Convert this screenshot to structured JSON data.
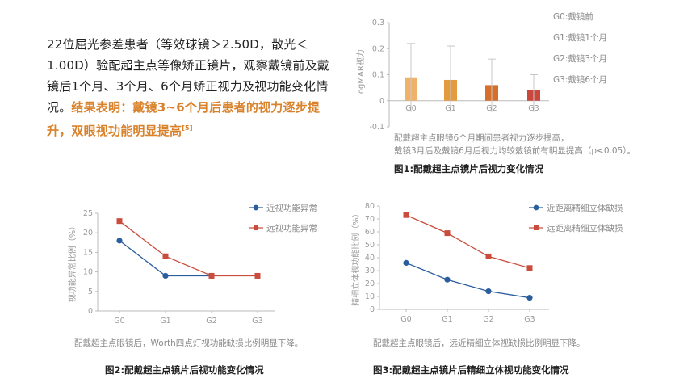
{
  "intro": {
    "text": "22位屈光参差患者（等效球镜＞2.50D，散光＜1.00D）验配超主点等像矫正镜片，观察戴镜前及戴镜后1个月、3个月、6个月矫正视力及视功能变化情况。",
    "highlight": "结果表明：戴镜3~6个月后患者的视力逐步提升，双眼视功能明显提高",
    "ref": "[5]"
  },
  "chart_data": [
    {
      "type": "bar",
      "ylabel": "logMAR视力",
      "categories": [
        "G0",
        "G1",
        "G2",
        "G3"
      ],
      "values": [
        0.09,
        0.08,
        0.06,
        0.04
      ],
      "error_upper": [
        0.22,
        0.21,
        0.16,
        0.1
      ],
      "ylim": [
        -0.1,
        0.3
      ],
      "yticks": [
        "0.3",
        "0.2",
        "0.1",
        "0",
        "-0.1"
      ],
      "colors": [
        "#efb26a",
        "#e49a3e",
        "#d66f2c",
        "#c9473d"
      ],
      "legend": [
        "G0:戴镜前",
        "G1:戴镜1个月",
        "G2:戴镜3个月",
        "G3:戴镜6个月"
      ],
      "caption": [
        "配戴超主点眼镜6个月期间患者视力逐步提高，",
        "戴镜3月后及戴镜6月后视力均较戴镜前有明显提高（p<0.05）。"
      ],
      "title": "图1:配戴超主点镜片后视力变化情况"
    },
    {
      "type": "line",
      "ylabel": "视功能异常比例（%）",
      "categories": [
        "G0",
        "G1",
        "G2",
        "G3"
      ],
      "ylim": [
        0,
        25
      ],
      "yticks": [
        "25",
        "20",
        "15",
        "10",
        "5",
        "0"
      ],
      "series": [
        {
          "name": "近视功能异常",
          "color": "#2a5d9e",
          "marker": "circle",
          "values": [
            18,
            9,
            9,
            null
          ]
        },
        {
          "name": "远视功能异常",
          "color": "#c94c3d",
          "marker": "square",
          "values": [
            23,
            14,
            9,
            9
          ]
        }
      ],
      "caption": "配戴超主点眼镜后，Worth四点灯视功能缺损比例明显下降。",
      "title": "图2:配戴超主点镜片后视功能变化情况"
    },
    {
      "type": "line",
      "ylabel": "精细立体视功能比例（%）",
      "categories": [
        "G0",
        "G1",
        "G2",
        "G3"
      ],
      "ylim": [
        0,
        80
      ],
      "yticks": [
        "80",
        "70",
        "60",
        "50",
        "40",
        "30",
        "20",
        "10",
        "0"
      ],
      "series": [
        {
          "name": "近距离精细立体缺损",
          "color": "#2a5d9e",
          "marker": "circle",
          "values": [
            36,
            23,
            14,
            9
          ]
        },
        {
          "name": "远距离精细立体缺损",
          "color": "#c94c3d",
          "marker": "square",
          "values": [
            73,
            59,
            41,
            32
          ]
        }
      ],
      "caption": "配戴超主点眼镜后，远近精细立体视缺损比例明显下降。",
      "title": "图3:配戴超主点镜片后精细立体视功能变化情况"
    }
  ]
}
